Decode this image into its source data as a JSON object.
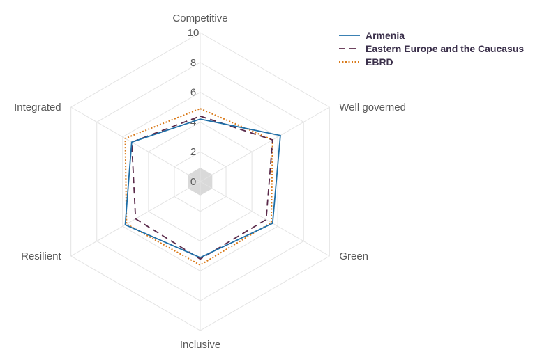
{
  "chart_data": {
    "type": "radar",
    "title": "",
    "categories": [
      "Competitive",
      "Well governed",
      "Green",
      "Inclusive",
      "Resilient",
      "Integrated"
    ],
    "rlim": [
      0,
      10
    ],
    "rticks": [
      "0",
      "2",
      "4",
      "6",
      "8",
      "10"
    ],
    "rtick_values": [
      0,
      2,
      4,
      6,
      8,
      10
    ],
    "grid": true,
    "legend_position": "top-right",
    "series": [
      {
        "name": "Armenia",
        "values": [
          4.2,
          6.2,
          5.6,
          5.1,
          5.8,
          5.3
        ],
        "color": "#1f6fa8",
        "style": "solid"
      },
      {
        "name": "Eastern Europe and the Caucasus",
        "values": [
          4.4,
          5.6,
          5.1,
          5.2,
          5.0,
          5.3
        ],
        "color": "#5a2a4a",
        "style": "dashed"
      },
      {
        "name": "EBRD",
        "values": [
          4.9,
          5.6,
          5.5,
          5.6,
          5.7,
          5.8
        ],
        "color": "#d97a1a",
        "style": "dotted"
      }
    ]
  }
}
